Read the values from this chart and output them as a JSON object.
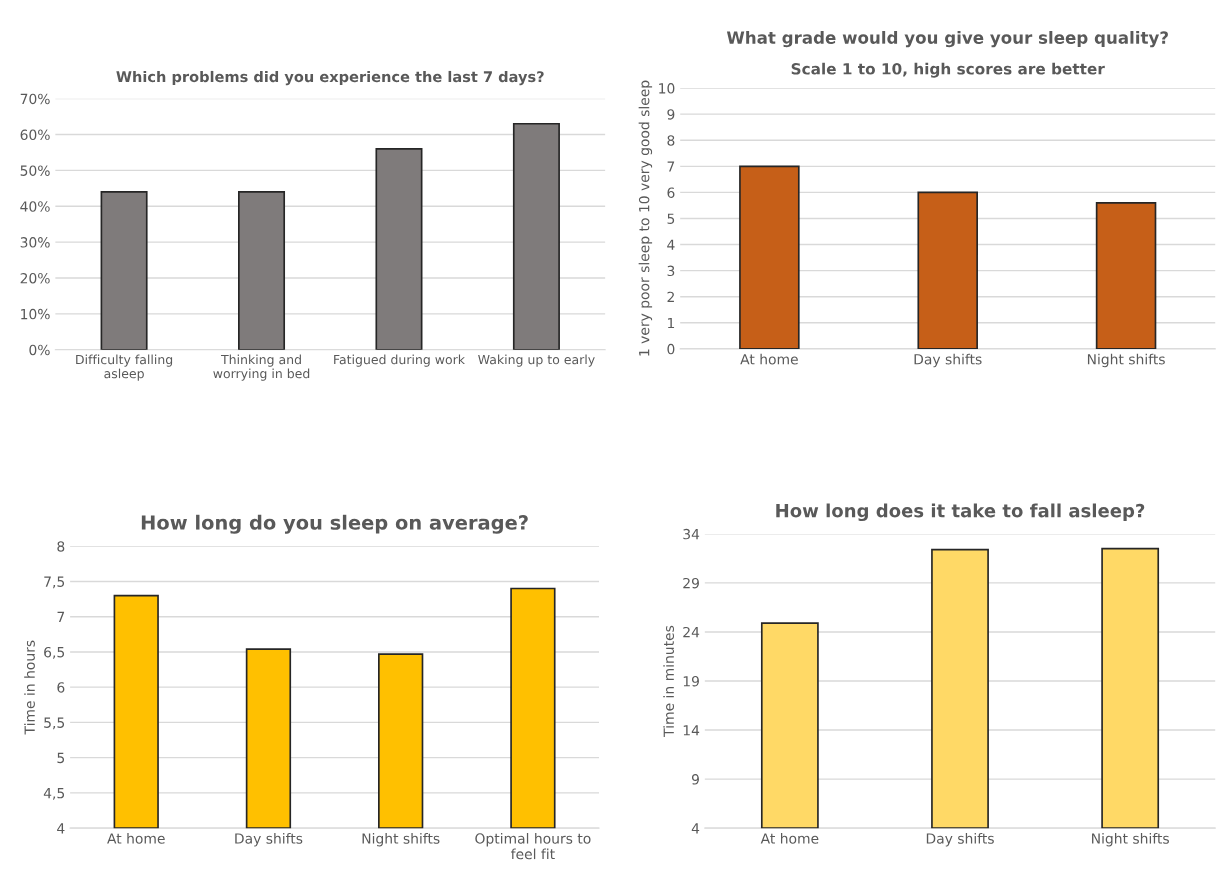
{
  "chart_data": [
    {
      "type": "bar",
      "title": "Which problems did you experience the last 7 days?",
      "categories": [
        "Difficulty falling\nasleep",
        "Thinking and\nworrying in bed",
        "Fatigued during work",
        "Waking up to early"
      ],
      "values": [
        44,
        44,
        56,
        63
      ],
      "color": "#7f7b7b",
      "ylim": [
        0,
        70
      ],
      "yticks": [
        {
          "value": 0,
          "label": "0%"
        },
        {
          "value": 10,
          "label": "10%"
        },
        {
          "value": 20,
          "label": "20%"
        },
        {
          "value": 30,
          "label": "30%"
        },
        {
          "value": 40,
          "label": "40%"
        },
        {
          "value": 50,
          "label": "50%"
        },
        {
          "value": 60,
          "label": "60%"
        },
        {
          "value": 70,
          "label": "70%"
        }
      ],
      "grid": "y",
      "legend": false
    },
    {
      "type": "bar",
      "title": "What grade would you give your sleep quality?",
      "subtitle": "Scale 1 to 10, high scores are better",
      "ylabel": "1 very poor sleep to 10 very good sleep",
      "categories": [
        "At home",
        "Day shifts",
        "Night shifts"
      ],
      "values": [
        7.0,
        6.0,
        5.6
      ],
      "color": "#c65f18",
      "ylim": [
        0,
        10
      ],
      "yticks": [
        0,
        1,
        2,
        3,
        4,
        5,
        6,
        7,
        8,
        9,
        10
      ],
      "grid": "y",
      "legend": false
    },
    {
      "type": "bar",
      "title": "How long do you sleep on average?",
      "ylabel": "Time in hours",
      "categories": [
        "At home",
        "Day shifts",
        "Night shifts",
        "Optimal hours to\nfeel fit"
      ],
      "values": [
        7.3,
        6.54,
        6.47,
        7.4
      ],
      "color": "#ffc000",
      "ylim": [
        4,
        8
      ],
      "yticks": [
        4,
        {
          "value": 4.5,
          "label": "4,5"
        },
        5,
        {
          "value": 5.5,
          "label": "5,5"
        },
        6,
        {
          "value": 6.5,
          "label": "6,5"
        },
        7,
        {
          "value": 7.5,
          "label": "7,5"
        },
        8
      ],
      "grid": "y",
      "legend": false
    },
    {
      "type": "bar",
      "title": "How long does it take to fall asleep?",
      "ylabel": "Time in minutes",
      "categories": [
        "At home",
        "Day shifts",
        "Night shifts"
      ],
      "values": [
        24.9,
        32.4,
        32.5
      ],
      "color": "#ffd966",
      "ylim": [
        4,
        34
      ],
      "yticks": [
        4,
        9,
        14,
        19,
        24,
        29,
        34
      ],
      "grid": "y",
      "legend": false
    }
  ]
}
